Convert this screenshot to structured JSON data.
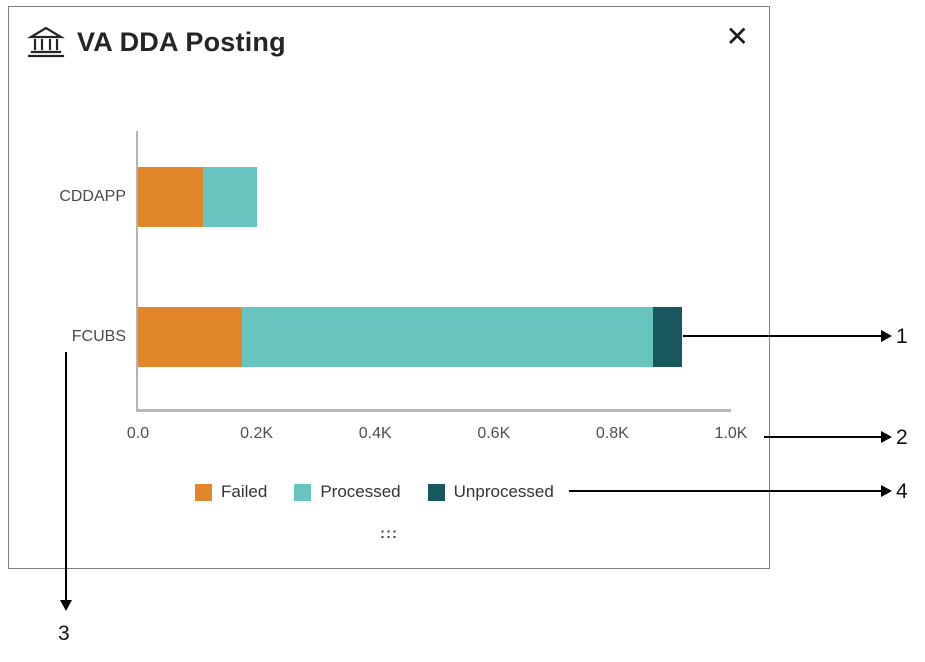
{
  "panel": {
    "title": "VA DDA Posting",
    "close_label": "✕",
    "drag_handle": ":::"
  },
  "chart_data": {
    "type": "bar",
    "orientation": "horizontal",
    "stacked": true,
    "title": "VA DDA Posting",
    "categories": [
      "CDDAPP",
      "FCUBS"
    ],
    "series": [
      {
        "name": "Failed",
        "color": "#e2862c",
        "values": [
          110,
          175
        ]
      },
      {
        "name": "Processed",
        "color": "#68c4be",
        "values": [
          90,
          690
        ]
      },
      {
        "name": "Unprocessed",
        "color": "#19575f",
        "values": [
          0,
          50
        ]
      }
    ],
    "x_ticks": [
      "0.0",
      "0.2K",
      "0.4K",
      "0.6K",
      "0.8K",
      "1.0K"
    ],
    "xlim": [
      0,
      1000
    ],
    "grid": false,
    "legend_position": "bottom"
  },
  "annotations": {
    "n1": "1",
    "n2": "2",
    "n3": "3",
    "n4": "4"
  }
}
